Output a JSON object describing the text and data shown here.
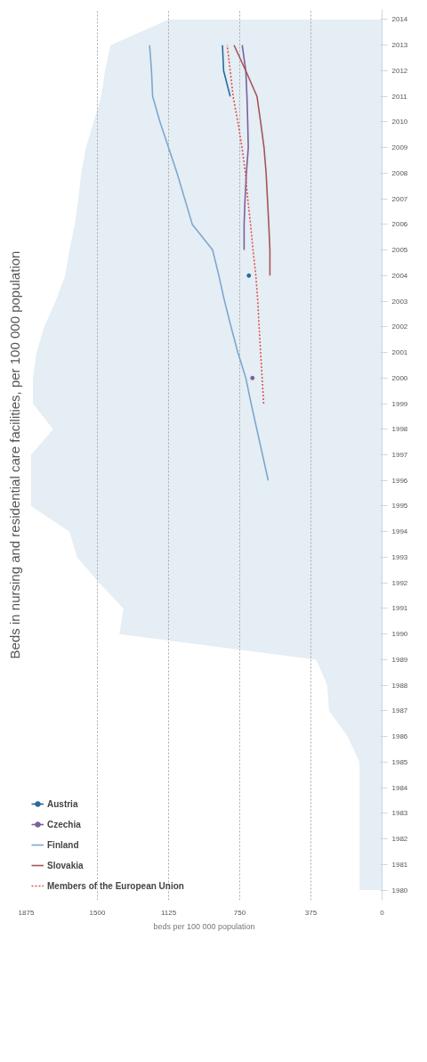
{
  "chart_data": {
    "type": "line",
    "orientation": "horizontal",
    "title": "Beds in nursing and residential care facilities, per 100 000 population",
    "xlabel": "beds per 100 000 population",
    "x": [
      1980,
      1981,
      1982,
      1983,
      1984,
      1985,
      1986,
      1987,
      1988,
      1989,
      1990,
      1991,
      1992,
      1993,
      1994,
      1995,
      1996,
      1997,
      1998,
      1999,
      2000,
      2001,
      2002,
      2003,
      2004,
      2005,
      2006,
      2007,
      2008,
      2009,
      2010,
      2011,
      2012,
      2013,
      2014
    ],
    "ylim": [
      1979.6,
      2014.4
    ],
    "yticks": [
      1980,
      1981,
      1982,
      1983,
      1984,
      1985,
      1986,
      1987,
      1988,
      1989,
      1990,
      1991,
      1992,
      1993,
      1994,
      1995,
      1996,
      1997,
      1998,
      1999,
      2000,
      2001,
      2002,
      2003,
      2004,
      2005,
      2006,
      2007,
      2008,
      2009,
      2010,
      2011,
      2012,
      2013,
      2014
    ],
    "xlim": [
      1875,
      0
    ],
    "xticks": [
      0,
      375,
      750,
      1125,
      1500,
      1875
    ],
    "grid": "x",
    "legend": "bottom left",
    "line_style": "solid",
    "marker": "none",
    "series": [
      {
        "type": "area",
        "color": "#e4eef4",
        "values": [
          119,
          119,
          119,
          119,
          119,
          119,
          182,
          279,
          289,
          347,
          1384,
          1363,
          1490,
          1607,
          1647,
          1850,
          1850,
          1850,
          1733,
          1840,
          1840,
          1821,
          1780,
          1720,
          1670,
          1647,
          1620,
          1600,
          1586,
          1560,
          1520,
          1480,
          1460,
          1431,
          1125
        ]
      },
      {
        "name": "Austria",
        "color": "#2a6a9e",
        "values": [
          null,
          null,
          null,
          null,
          null,
          null,
          null,
          null,
          null,
          null,
          null,
          null,
          null,
          null,
          null,
          null,
          null,
          null,
          null,
          null,
          null,
          null,
          null,
          null,
          702,
          null,
          null,
          null,
          null,
          null,
          null,
          800,
          835,
          841,
          null
        ]
      },
      {
        "name": "Czechia",
        "color": "#7d5f9c",
        "values": [
          null,
          null,
          null,
          null,
          null,
          null,
          null,
          null,
          null,
          null,
          null,
          null,
          null,
          null,
          null,
          null,
          null,
          null,
          null,
          null,
          683,
          null,
          null,
          null,
          null,
          727,
          727,
          722,
          715,
          705,
          708,
          712,
          718,
          737,
          null
        ]
      },
      {
        "name": "Finland",
        "color": "#7fa6cf",
        "values": [
          null,
          null,
          null,
          null,
          null,
          null,
          null,
          null,
          null,
          null,
          null,
          null,
          null,
          null,
          null,
          null,
          600,
          630,
          660,
          690,
          718,
          760,
          796,
          830,
          860,
          893,
          1000,
          1040,
          1080,
          1125,
          1170,
          1209,
          1215,
          1225,
          null
        ]
      },
      {
        "name": "Slovakia",
        "color": "#a8535a",
        "values": [
          null,
          null,
          null,
          null,
          null,
          null,
          null,
          null,
          null,
          null,
          null,
          null,
          null,
          null,
          null,
          null,
          null,
          null,
          null,
          null,
          null,
          null,
          null,
          null,
          591,
          591,
          597,
          604,
          611,
          622,
          640,
          659,
          718,
          780,
          null
        ]
      },
      {
        "name": "Members of the European Union",
        "color": "#e0504f",
        "line_style": "dotted",
        "values": [
          null,
          null,
          null,
          null,
          null,
          null,
          null,
          null,
          null,
          null,
          null,
          null,
          null,
          null,
          null,
          null,
          null,
          null,
          null,
          624,
          632,
          640,
          648,
          655,
          665,
          680,
          693,
          708,
          720,
          738,
          760,
          785,
          800,
          816,
          null
        ]
      }
    ]
  }
}
